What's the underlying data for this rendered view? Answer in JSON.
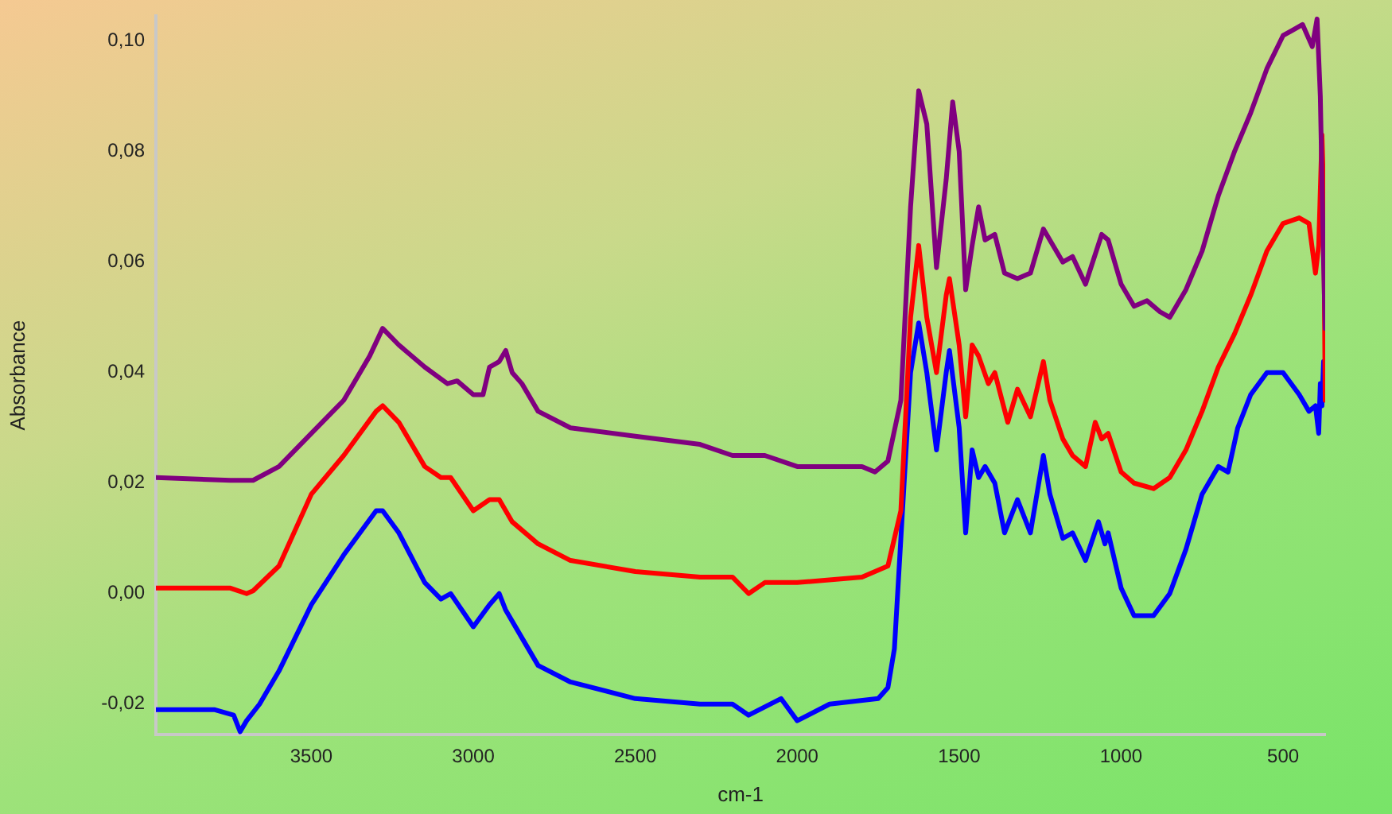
{
  "chart_data": {
    "type": "line",
    "xlabel": "cm-1",
    "ylabel": "Absorbance",
    "xlim": [
      3980,
      370
    ],
    "xticks": [
      3500,
      3000,
      2500,
      2000,
      1500,
      1000,
      500
    ],
    "ylim": [
      -0.0255,
      0.1045
    ],
    "yticks": [
      {
        "value": -0.02,
        "label": "-0,02"
      },
      {
        "value": 0,
        "label": "0,00"
      },
      {
        "value": 0.02,
        "label": "0,02"
      },
      {
        "value": 0.04,
        "label": "0,04"
      },
      {
        "value": 0.06,
        "label": "0,06"
      },
      {
        "value": 0.08,
        "label": "0,08"
      },
      {
        "value": 0.1,
        "label": "0,10"
      }
    ],
    "grid": false,
    "legend": false,
    "marker": "none",
    "line_style": "solid",
    "x": [
      3980,
      3750,
      3680,
      3600,
      3500,
      3400,
      3320,
      3280,
      3230,
      3150,
      3080,
      3050,
      3000,
      2970,
      2950,
      2920,
      2900,
      2880,
      2850,
      2800,
      2700,
      2500,
      2300,
      2200,
      2100,
      2000,
      1800,
      1760,
      1720,
      1680,
      1650,
      1625,
      1600,
      1570,
      1540,
      1520,
      1500,
      1480,
      1460,
      1440,
      1420,
      1390,
      1360,
      1320,
      1280,
      1240,
      1220,
      1180,
      1150,
      1110,
      1060,
      1040,
      1000,
      960,
      920,
      880,
      850,
      800,
      750,
      700,
      650,
      600,
      550,
      500,
      470,
      440,
      410,
      395,
      385,
      375,
      370
    ],
    "series": [
      {
        "color": "#800080",
        "values": [
          0.021,
          0.0205,
          0.0205,
          0.023,
          0.029,
          0.035,
          0.043,
          0.048,
          0.045,
          0.041,
          0.038,
          0.0385,
          0.036,
          0.036,
          0.041,
          0.042,
          0.044,
          0.04,
          0.038,
          0.033,
          0.03,
          0.0285,
          0.027,
          0.025,
          0.025,
          0.023,
          0.023,
          0.022,
          0.024,
          0.035,
          0.07,
          0.091,
          0.085,
          0.059,
          0.075,
          0.089,
          0.08,
          0.055,
          0.063,
          0.07,
          0.064,
          0.065,
          0.058,
          0.057,
          0.058,
          0.066,
          0.064,
          0.06,
          0.061,
          0.056,
          0.065,
          0.064,
          0.056,
          0.052,
          0.053,
          0.051,
          0.05,
          0.055,
          0.062,
          0.072,
          0.08,
          0.087,
          0.095,
          0.101,
          0.102,
          0.103,
          0.099,
          0.104,
          0.09,
          0.06,
          0.048
        ]
      },
      {
        "color": "#ff0000",
        "x": [
          3980,
          3750,
          3700,
          3680,
          3600,
          3500,
          3400,
          3300,
          3280,
          3230,
          3150,
          3100,
          3070,
          3000,
          2950,
          2920,
          2880,
          2800,
          2700,
          2500,
          2300,
          2200,
          2150,
          2100,
          2000,
          1800,
          1720,
          1680,
          1650,
          1625,
          1600,
          1570,
          1540,
          1530,
          1500,
          1480,
          1460,
          1440,
          1410,
          1390,
          1350,
          1320,
          1280,
          1240,
          1220,
          1180,
          1150,
          1110,
          1080,
          1060,
          1040,
          1000,
          960,
          900,
          850,
          800,
          750,
          700,
          650,
          600,
          550,
          500,
          450,
          420,
          400,
          390,
          380,
          375,
          370
        ],
        "values": [
          0.001,
          0.001,
          0,
          0.0005,
          0.005,
          0.018,
          0.025,
          0.033,
          0.034,
          0.031,
          0.023,
          0.021,
          0.021,
          0.015,
          0.017,
          0.017,
          0.013,
          0.009,
          0.006,
          0.004,
          0.003,
          0.003,
          0,
          0.002,
          0.002,
          0.003,
          0.005,
          0.015,
          0.05,
          0.063,
          0.05,
          0.04,
          0.054,
          0.057,
          0.045,
          0.032,
          0.045,
          0.043,
          0.038,
          0.04,
          0.031,
          0.037,
          0.032,
          0.042,
          0.035,
          0.028,
          0.025,
          0.023,
          0.031,
          0.028,
          0.029,
          0.022,
          0.02,
          0.019,
          0.021,
          0.026,
          0.033,
          0.041,
          0.047,
          0.054,
          0.062,
          0.067,
          0.068,
          0.067,
          0.058,
          0.063,
          0.083,
          0.073,
          0.035
        ]
      },
      {
        "color": "#0000ff",
        "x": [
          3980,
          3800,
          3740,
          3720,
          3700,
          3660,
          3600,
          3500,
          3400,
          3300,
          3280,
          3230,
          3150,
          3100,
          3070,
          3000,
          2950,
          2920,
          2900,
          2850,
          2800,
          2700,
          2500,
          2300,
          2200,
          2150,
          2050,
          2000,
          1900,
          1750,
          1720,
          1700,
          1680,
          1650,
          1625,
          1600,
          1570,
          1540,
          1530,
          1500,
          1480,
          1460,
          1440,
          1420,
          1390,
          1360,
          1320,
          1280,
          1240,
          1220,
          1180,
          1150,
          1110,
          1070,
          1050,
          1040,
          1000,
          960,
          900,
          850,
          800,
          750,
          700,
          670,
          640,
          600,
          550,
          500,
          450,
          420,
          400,
          390,
          385,
          380,
          375,
          370
        ],
        "values": [
          -0.021,
          -0.021,
          -0.022,
          -0.025,
          -0.023,
          -0.02,
          -0.014,
          -0.002,
          0.007,
          0.015,
          0.015,
          0.011,
          0.002,
          -0.001,
          0,
          -0.006,
          -0.002,
          0,
          -0.003,
          -0.008,
          -0.013,
          -0.016,
          -0.019,
          -0.02,
          -0.02,
          -0.022,
          -0.019,
          -0.023,
          -0.02,
          -0.019,
          -0.017,
          -0.01,
          0.01,
          0.04,
          0.049,
          0.04,
          0.026,
          0.04,
          0.044,
          0.03,
          0.011,
          0.026,
          0.021,
          0.023,
          0.02,
          0.011,
          0.017,
          0.011,
          0.025,
          0.018,
          0.01,
          0.011,
          0.006,
          0.013,
          0.009,
          0.011,
          0.001,
          -0.004,
          -0.004,
          0,
          0.008,
          0.018,
          0.023,
          0.022,
          0.03,
          0.036,
          0.04,
          0.04,
          0.036,
          0.033,
          0.034,
          0.029,
          0.038,
          0.034,
          0.042,
          0.038
        ]
      }
    ]
  }
}
